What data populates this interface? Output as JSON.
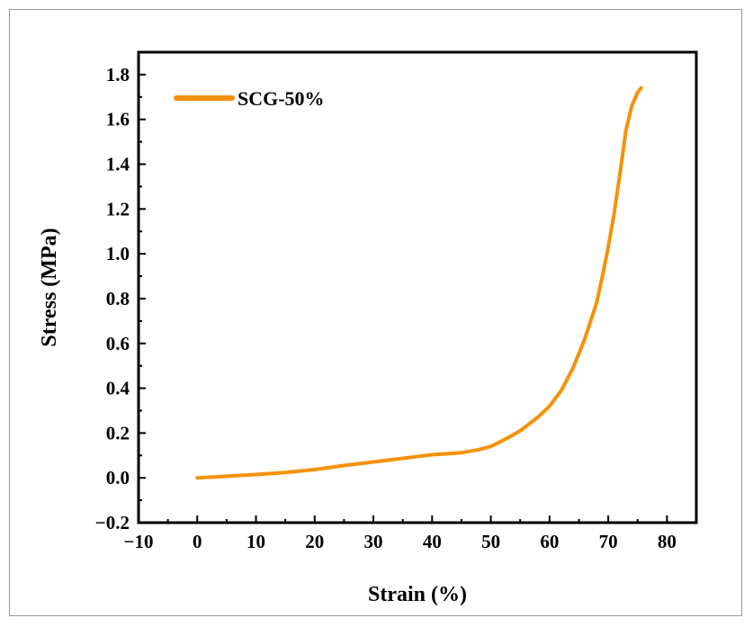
{
  "chart_data": {
    "type": "line",
    "xlabel": "Strain (%)",
    "ylabel": "Stress (MPa)",
    "xlim": [
      -10,
      85
    ],
    "ylim": [
      -0.2,
      1.9
    ],
    "x_ticks": [
      -10,
      0,
      10,
      20,
      30,
      40,
      50,
      60,
      70,
      80
    ],
    "x_tick_labels": [
      "−10",
      "0",
      "10",
      "20",
      "30",
      "40",
      "50",
      "60",
      "70",
      "80"
    ],
    "y_ticks": [
      -0.2,
      0.0,
      0.2,
      0.4,
      0.6,
      0.8,
      1.0,
      1.2,
      1.4,
      1.6,
      1.8
    ],
    "y_tick_labels": [
      "−0.2",
      "0.0",
      "0.2",
      "0.4",
      "0.6",
      "0.8",
      "1.0",
      "1.2",
      "1.4",
      "1.6",
      "1.8"
    ],
    "grid": false,
    "legend_position": "top-left",
    "series": [
      {
        "name": "SCG-50%",
        "color": "#f5920a",
        "x": [
          0,
          5,
          10,
          15,
          20,
          25,
          30,
          35,
          40,
          45,
          48,
          50,
          53,
          55,
          58,
          60,
          62,
          64,
          66,
          68,
          69,
          70,
          71,
          72,
          73,
          74,
          75,
          75.6
        ],
        "y": [
          0.0,
          0.007,
          0.015,
          0.024,
          0.037,
          0.055,
          0.071,
          0.087,
          0.103,
          0.112,
          0.126,
          0.14,
          0.18,
          0.21,
          0.27,
          0.32,
          0.39,
          0.49,
          0.62,
          0.78,
          0.9,
          1.03,
          1.18,
          1.36,
          1.55,
          1.66,
          1.72,
          1.74
        ]
      }
    ]
  }
}
